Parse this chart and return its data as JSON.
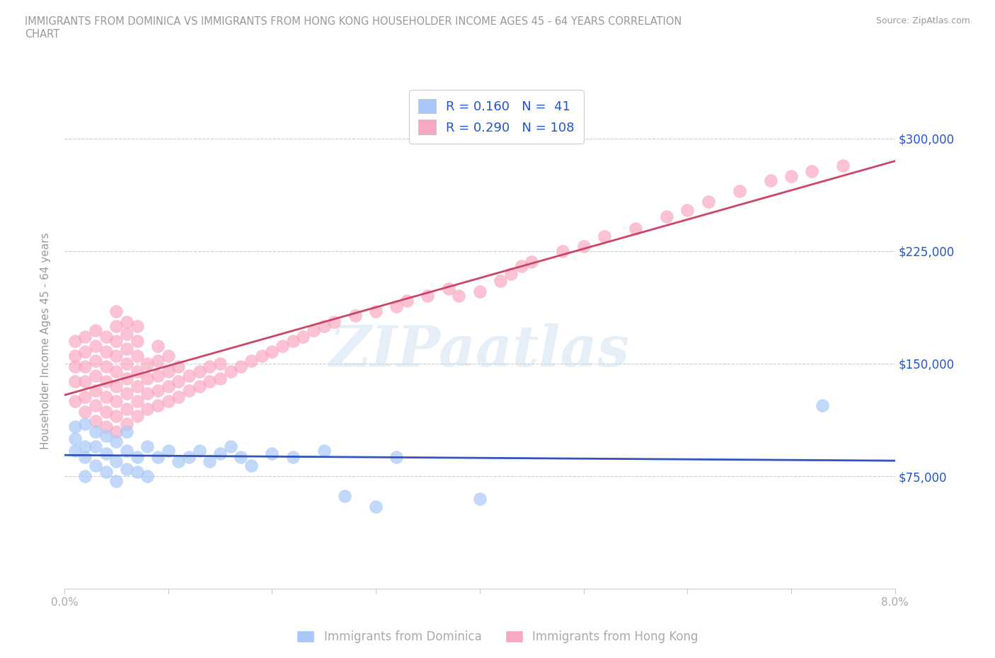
{
  "title": "IMMIGRANTS FROM DOMINICA VS IMMIGRANTS FROM HONG KONG HOUSEHOLDER INCOME AGES 45 - 64 YEARS CORRELATION\nCHART",
  "source_text": "Source: ZipAtlas.com",
  "ylabel": "Householder Income Ages 45 - 64 years",
  "xlim": [
    0.0,
    0.08
  ],
  "ylim": [
    0,
    330000
  ],
  "xticks": [
    0.0,
    0.01,
    0.02,
    0.03,
    0.04,
    0.05,
    0.06,
    0.07,
    0.08
  ],
  "xticklabels": [
    "0.0%",
    "",
    "",
    "",
    "",
    "",
    "",
    "",
    "8.0%"
  ],
  "yticks": [
    75000,
    150000,
    225000,
    300000
  ],
  "yticklabels": [
    "$75,000",
    "$150,000",
    "$225,000",
    "$300,000"
  ],
  "watermark": "ZIPaatlas",
  "dominica_color": "#a8c8f8",
  "hong_kong_color": "#f8a8c0",
  "dominica_line_color": "#3355bb",
  "hong_kong_line_color": "#cc4466",
  "dominica_R": 0.16,
  "dominica_N": 41,
  "hong_kong_R": 0.29,
  "hong_kong_N": 108,
  "legend_text_color": "#2255cc",
  "grid_color": "#cccccc",
  "title_color": "#999999",
  "axis_label_color": "#999999",
  "tick_color": "#aaaaaa",
  "dominica_x": [
    0.001,
    0.001,
    0.001,
    0.002,
    0.002,
    0.002,
    0.002,
    0.003,
    0.003,
    0.003,
    0.004,
    0.004,
    0.004,
    0.005,
    0.005,
    0.005,
    0.006,
    0.006,
    0.006,
    0.007,
    0.007,
    0.008,
    0.008,
    0.009,
    0.01,
    0.011,
    0.012,
    0.013,
    0.014,
    0.015,
    0.016,
    0.017,
    0.018,
    0.02,
    0.022,
    0.025,
    0.027,
    0.03,
    0.032,
    0.04,
    0.073
  ],
  "dominica_y": [
    100000,
    92000,
    108000,
    88000,
    75000,
    95000,
    110000,
    82000,
    95000,
    105000,
    78000,
    90000,
    102000,
    72000,
    85000,
    98000,
    80000,
    92000,
    105000,
    78000,
    88000,
    75000,
    95000,
    88000,
    92000,
    85000,
    88000,
    92000,
    85000,
    90000,
    95000,
    88000,
    82000,
    90000,
    88000,
    92000,
    62000,
    55000,
    88000,
    60000,
    122000
  ],
  "hong_kong_x": [
    0.001,
    0.001,
    0.001,
    0.001,
    0.001,
    0.002,
    0.002,
    0.002,
    0.002,
    0.002,
    0.002,
    0.003,
    0.003,
    0.003,
    0.003,
    0.003,
    0.003,
    0.003,
    0.004,
    0.004,
    0.004,
    0.004,
    0.004,
    0.004,
    0.004,
    0.005,
    0.005,
    0.005,
    0.005,
    0.005,
    0.005,
    0.005,
    0.005,
    0.005,
    0.006,
    0.006,
    0.006,
    0.006,
    0.006,
    0.006,
    0.006,
    0.006,
    0.007,
    0.007,
    0.007,
    0.007,
    0.007,
    0.007,
    0.007,
    0.008,
    0.008,
    0.008,
    0.008,
    0.009,
    0.009,
    0.009,
    0.009,
    0.009,
    0.01,
    0.01,
    0.01,
    0.01,
    0.011,
    0.011,
    0.011,
    0.012,
    0.012,
    0.013,
    0.013,
    0.014,
    0.014,
    0.015,
    0.015,
    0.016,
    0.017,
    0.018,
    0.019,
    0.02,
    0.021,
    0.022,
    0.023,
    0.024,
    0.025,
    0.026,
    0.028,
    0.03,
    0.032,
    0.033,
    0.035,
    0.037,
    0.038,
    0.04,
    0.042,
    0.043,
    0.044,
    0.045,
    0.048,
    0.05,
    0.052,
    0.055,
    0.058,
    0.06,
    0.062,
    0.065,
    0.068,
    0.07,
    0.072,
    0.075
  ],
  "hong_kong_y": [
    125000,
    138000,
    148000,
    155000,
    165000,
    118000,
    128000,
    138000,
    148000,
    158000,
    168000,
    112000,
    122000,
    132000,
    142000,
    152000,
    162000,
    172000,
    108000,
    118000,
    128000,
    138000,
    148000,
    158000,
    168000,
    105000,
    115000,
    125000,
    135000,
    145000,
    155000,
    165000,
    175000,
    185000,
    110000,
    120000,
    130000,
    140000,
    150000,
    160000,
    170000,
    178000,
    115000,
    125000,
    135000,
    145000,
    155000,
    165000,
    175000,
    120000,
    130000,
    140000,
    150000,
    122000,
    132000,
    142000,
    152000,
    162000,
    125000,
    135000,
    145000,
    155000,
    128000,
    138000,
    148000,
    132000,
    142000,
    135000,
    145000,
    138000,
    148000,
    140000,
    150000,
    145000,
    148000,
    152000,
    155000,
    158000,
    162000,
    165000,
    168000,
    172000,
    175000,
    178000,
    182000,
    185000,
    188000,
    192000,
    195000,
    200000,
    195000,
    198000,
    205000,
    210000,
    215000,
    218000,
    225000,
    228000,
    235000,
    240000,
    248000,
    252000,
    258000,
    265000,
    272000,
    275000,
    278000,
    282000
  ]
}
